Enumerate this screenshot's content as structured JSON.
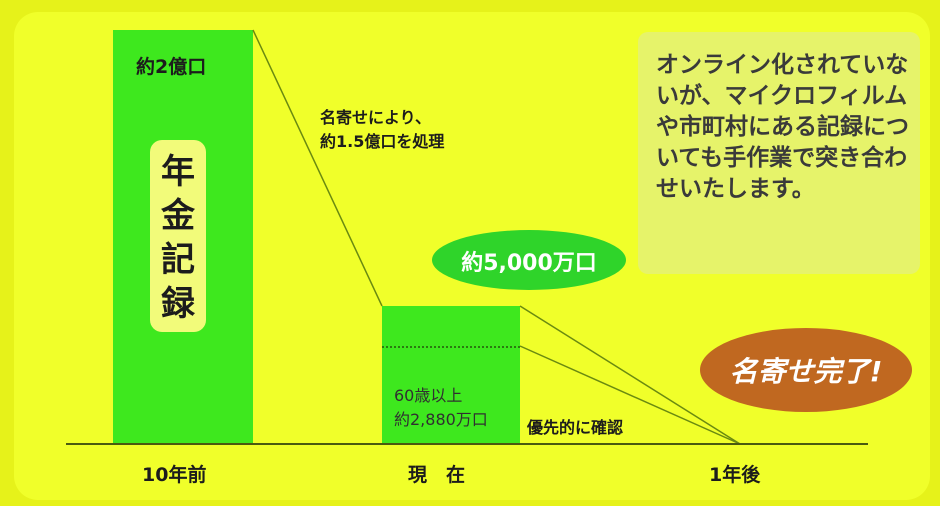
{
  "left_bar": {
    "top_label": "約2億口",
    "vertical_label": "年金記録"
  },
  "reduction_note": {
    "line1": "名寄せにより、",
    "line2": "約1.5億口を処理"
  },
  "current_bubble": "約5,000万口",
  "current_bar": {
    "line1": "60歳以上",
    "line2": "約2,880万口"
  },
  "priority_label": "優先的に確認",
  "info_note": "オンライン化されていないが、マイクロフィルムや市町村にある記録についても手作業で突き合わせいたします。",
  "done_label": "名寄せ完了!",
  "timeline": {
    "left": "10年前",
    "center": "現　在",
    "right": "1年後"
  },
  "colors": {
    "background": "#f0ff2a",
    "bar": "#3ee81e",
    "bubble": "#2fd42a",
    "done": "#c06820"
  }
}
